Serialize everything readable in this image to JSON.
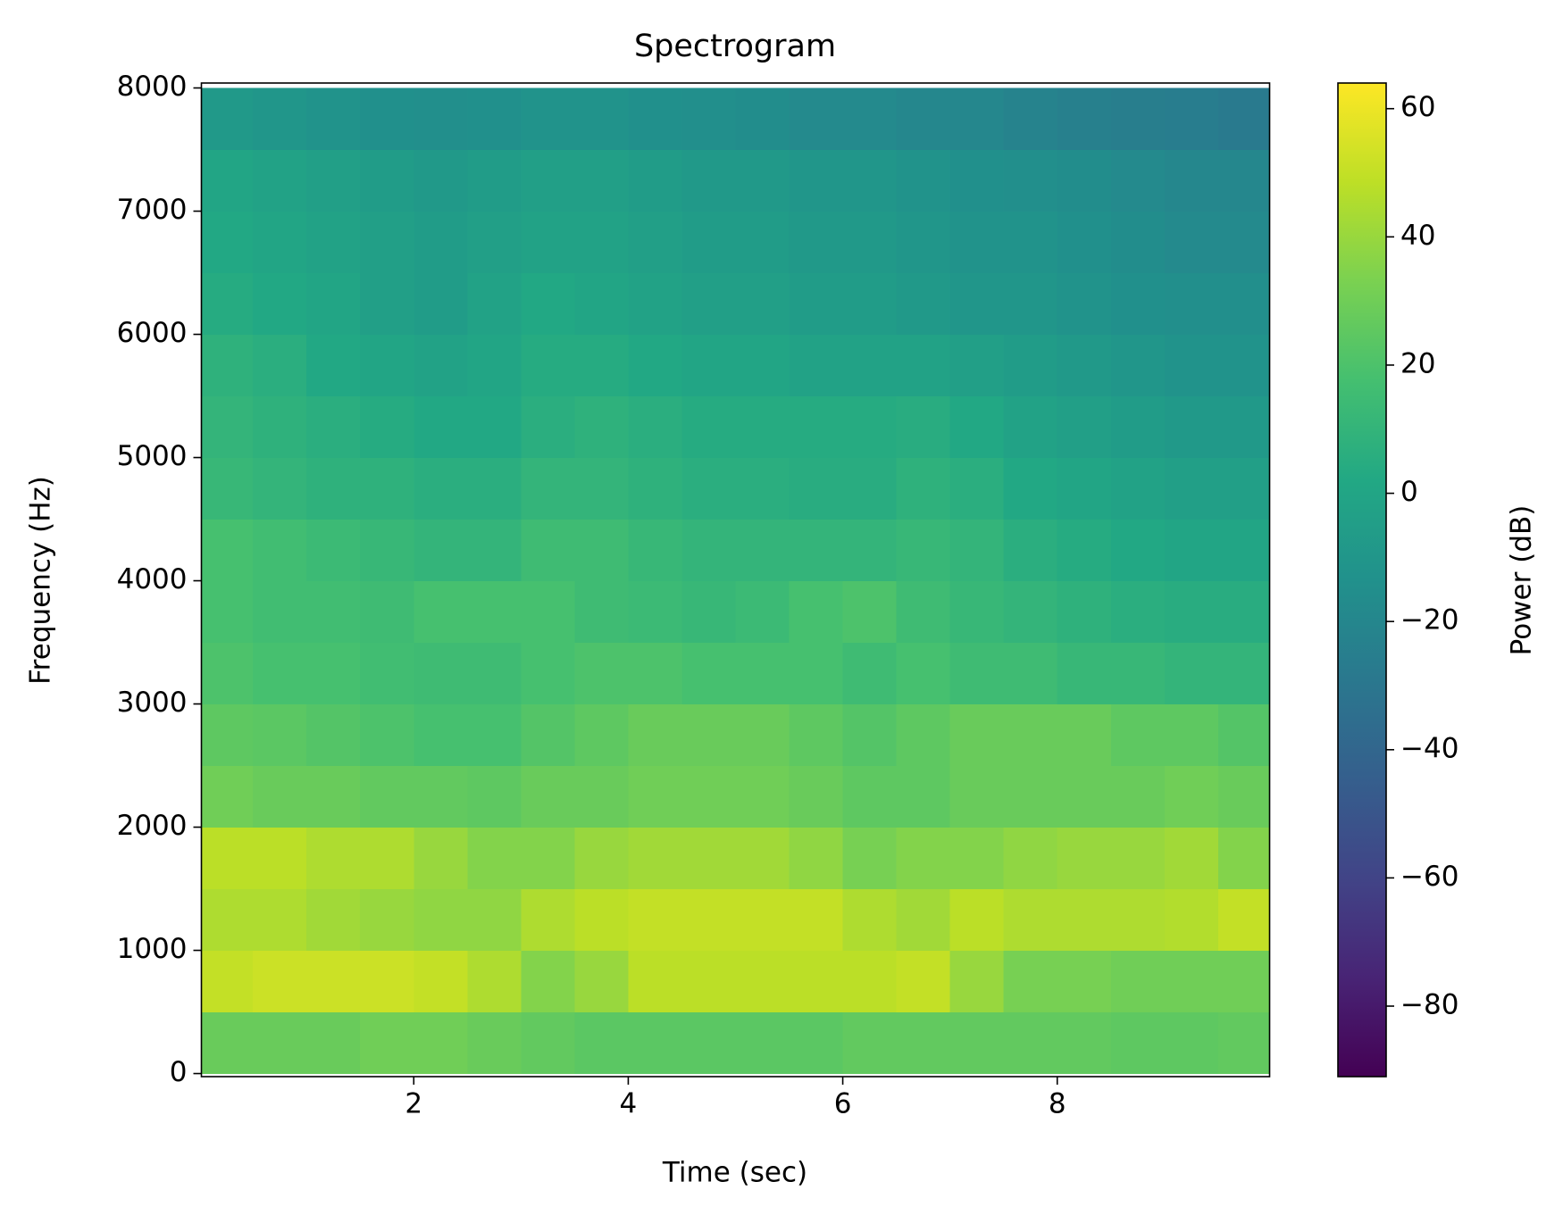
{
  "chart_data": {
    "type": "heatmap",
    "title": "Spectrogram",
    "x_label": "Time (sec)",
    "y_label": "Frequency (Hz)",
    "colorbar_label": "Power (dB)",
    "colormap": "viridis",
    "x": [
      0.25,
      0.75,
      1.25,
      1.75,
      2.25,
      2.75,
      3.25,
      3.75,
      4.25,
      4.75,
      5.25,
      5.75,
      6.25,
      6.75,
      7.25,
      7.75,
      8.25,
      8.75,
      9.25,
      9.75
    ],
    "y": [
      250,
      750,
      1250,
      1750,
      2250,
      2750,
      3250,
      3750,
      4250,
      4750,
      5250,
      5750,
      6250,
      6750,
      7250,
      7750
    ],
    "z": [
      [
        28,
        28,
        28,
        30,
        30,
        28,
        26,
        24,
        24,
        24,
        24,
        24,
        26,
        26,
        26,
        26,
        26,
        25,
        25,
        26
      ],
      [
        50,
        52,
        52,
        52,
        50,
        45,
        35,
        40,
        48,
        48,
        48,
        48,
        48,
        50,
        40,
        32,
        32,
        30,
        30,
        30
      ],
      [
        45,
        45,
        42,
        40,
        38,
        38,
        45,
        48,
        50,
        50,
        50,
        50,
        45,
        42,
        48,
        45,
        45,
        45,
        46,
        50
      ],
      [
        48,
        48,
        45,
        45,
        40,
        35,
        35,
        40,
        42,
        42,
        42,
        38,
        32,
        35,
        35,
        38,
        40,
        40,
        42,
        35
      ],
      [
        30,
        28,
        28,
        26,
        26,
        25,
        28,
        28,
        30,
        30,
        30,
        28,
        25,
        25,
        28,
        28,
        28,
        28,
        30,
        28
      ],
      [
        25,
        24,
        22,
        20,
        18,
        18,
        22,
        25,
        28,
        28,
        28,
        25,
        22,
        25,
        28,
        28,
        28,
        25,
        25,
        22
      ],
      [
        20,
        18,
        18,
        16,
        15,
        15,
        18,
        20,
        20,
        18,
        18,
        18,
        15,
        18,
        15,
        15,
        12,
        12,
        10,
        10
      ],
      [
        18,
        16,
        16,
        15,
        18,
        18,
        18,
        15,
        14,
        12,
        14,
        18,
        20,
        15,
        12,
        10,
        8,
        6,
        5,
        5
      ],
      [
        18,
        16,
        14,
        12,
        10,
        10,
        15,
        15,
        12,
        10,
        10,
        10,
        10,
        12,
        10,
        6,
        4,
        2,
        0,
        0
      ],
      [
        12,
        10,
        8,
        8,
        6,
        6,
        10,
        10,
        8,
        6,
        6,
        5,
        5,
        8,
        6,
        2,
        0,
        -2,
        -4,
        -4
      ],
      [
        10,
        8,
        6,
        4,
        2,
        2,
        6,
        8,
        6,
        4,
        4,
        4,
        4,
        5,
        2,
        -2,
        -4,
        -6,
        -8,
        -8
      ],
      [
        8,
        6,
        2,
        0,
        -2,
        0,
        4,
        4,
        2,
        0,
        0,
        -2,
        -2,
        -2,
        -4,
        -6,
        -8,
        -10,
        -12,
        -12
      ],
      [
        4,
        2,
        0,
        -4,
        -6,
        -2,
        2,
        0,
        -2,
        -4,
        -4,
        -6,
        -6,
        -8,
        -10,
        -10,
        -12,
        -14,
        -15,
        -15
      ],
      [
        2,
        0,
        -2,
        -4,
        -6,
        -4,
        -2,
        -2,
        -4,
        -6,
        -6,
        -8,
        -8,
        -10,
        -12,
        -12,
        -14,
        -16,
        -18,
        -18
      ],
      [
        0,
        -2,
        -4,
        -6,
        -8,
        -6,
        -4,
        -4,
        -6,
        -8,
        -8,
        -10,
        -10,
        -12,
        -14,
        -15,
        -16,
        -18,
        -20,
        -20
      ],
      [
        -8,
        -10,
        -12,
        -14,
        -15,
        -14,
        -12,
        -12,
        -14,
        -15,
        -16,
        -18,
        -18,
        -20,
        -20,
        -22,
        -24,
        -25,
        -26,
        -28
      ]
    ],
    "xlim": [
      0.02,
      9.98
    ],
    "ylim": [
      -25,
      8040
    ],
    "xticks": [
      2,
      4,
      6,
      8
    ],
    "yticks": [
      0,
      1000,
      2000,
      3000,
      4000,
      5000,
      6000,
      7000,
      8000
    ],
    "clim": [
      -91,
      64
    ],
    "cticks": [
      {
        "value": -80,
        "label": "−80"
      },
      {
        "value": -60,
        "label": "−60"
      },
      {
        "value": -40,
        "label": "−40"
      },
      {
        "value": -20,
        "label": "−20"
      },
      0,
      20,
      40,
      60
    ]
  }
}
